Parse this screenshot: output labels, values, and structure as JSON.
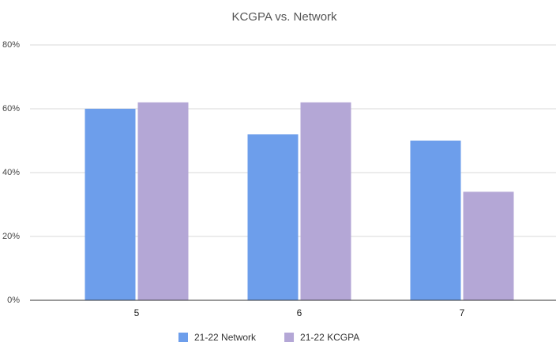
{
  "chart_data": {
    "type": "bar",
    "title": "KCGPA vs. Network",
    "categories": [
      "5",
      "6",
      "7"
    ],
    "series": [
      {
        "name": "21-22 Network",
        "color": "#6d9eeb",
        "values": [
          60,
          52,
          50
        ]
      },
      {
        "name": "21-22 KCGPA",
        "color": "#b4a7d6",
        "values": [
          62,
          62,
          34
        ]
      }
    ],
    "ylim": [
      0,
      80
    ],
    "yticks": [
      {
        "value": 0,
        "label": "0%"
      },
      {
        "value": 20,
        "label": "20%"
      },
      {
        "value": 40,
        "label": "40%"
      },
      {
        "value": 60,
        "label": "60%"
      },
      {
        "value": 80,
        "label": "80%"
      }
    ],
    "grid": true,
    "legend": "bottom"
  }
}
